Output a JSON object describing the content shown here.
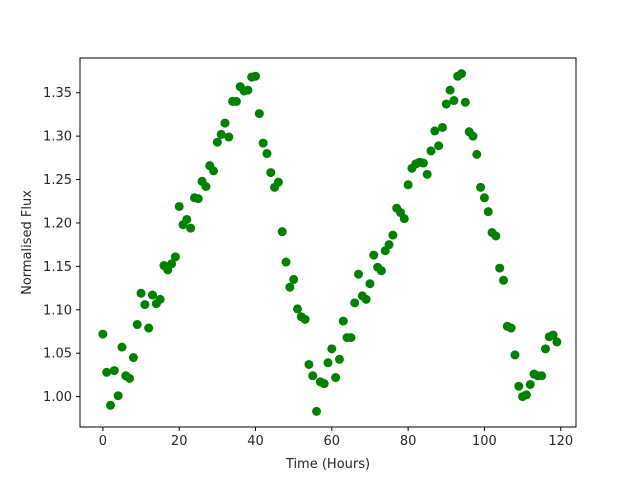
{
  "chart_data": {
    "type": "scatter",
    "xlabel": "Time (Hours)",
    "ylabel": "Normalised Flux",
    "xlim": [
      -6,
      124
    ],
    "ylim": [
      0.965,
      1.39
    ],
    "xticks": [
      0,
      20,
      40,
      60,
      80,
      100,
      120
    ],
    "yticks": [
      1.0,
      1.05,
      1.1,
      1.15,
      1.2,
      1.25,
      1.3,
      1.35
    ],
    "ytick_labels": [
      "1.00",
      "1.05",
      "1.10",
      "1.15",
      "1.20",
      "1.25",
      "1.30",
      "1.35"
    ],
    "grid": false,
    "marker_color": "#008000",
    "series": [
      {
        "x": [
          0,
          1,
          2,
          3,
          4,
          5,
          6,
          7,
          8,
          9,
          10,
          11,
          12,
          13,
          14,
          15,
          16,
          17,
          18,
          19,
          20,
          21,
          22,
          23,
          24,
          25,
          26,
          27,
          28,
          29,
          30,
          31,
          32,
          33,
          34,
          35,
          36,
          37,
          38,
          39,
          40,
          41,
          42,
          43,
          44,
          45,
          46,
          47,
          48,
          49,
          50,
          51,
          52,
          53,
          54,
          55,
          56,
          57,
          58,
          59,
          60,
          61,
          62,
          63,
          64,
          65,
          66,
          67,
          68,
          69,
          70,
          71,
          72,
          73,
          74,
          75,
          76,
          77,
          78,
          79,
          80,
          81,
          82,
          83,
          84,
          85,
          86,
          87,
          88,
          89,
          90,
          91,
          92,
          93,
          94,
          95,
          96,
          97,
          98,
          99,
          100,
          101,
          102,
          103,
          104,
          105,
          106,
          107,
          108,
          109,
          110,
          111,
          112,
          113,
          114,
          115,
          116,
          117,
          118,
          119
        ],
        "y": [
          1.072,
          1.028,
          0.99,
          1.03,
          1.001,
          1.057,
          1.024,
          1.021,
          1.045,
          1.083,
          1.119,
          1.106,
          1.079,
          1.117,
          1.107,
          1.112,
          1.151,
          1.146,
          1.153,
          1.161,
          1.219,
          1.198,
          1.204,
          1.194,
          1.229,
          1.228,
          1.248,
          1.242,
          1.266,
          1.26,
          1.293,
          1.302,
          1.315,
          1.299,
          1.34,
          1.34,
          1.357,
          1.352,
          1.353,
          1.368,
          1.369,
          1.326,
          1.292,
          1.28,
          1.258,
          1.241,
          1.247,
          1.19,
          1.155,
          1.126,
          1.135,
          1.101,
          1.092,
          1.089,
          1.037,
          1.024,
          0.983,
          1.017,
          1.015,
          1.039,
          1.055,
          1.022,
          1.043,
          1.087,
          1.068,
          1.068,
          1.108,
          1.141,
          1.116,
          1.112,
          1.13,
          1.163,
          1.149,
          1.145,
          1.168,
          1.175,
          1.186,
          1.217,
          1.212,
          1.205,
          1.244,
          1.263,
          1.268,
          1.27,
          1.269,
          1.256,
          1.283,
          1.306,
          1.289,
          1.31,
          1.337,
          1.353,
          1.341,
          1.369,
          1.372,
          1.339,
          1.305,
          1.3,
          1.279,
          1.241,
          1.229,
          1.213,
          1.189,
          1.185,
          1.148,
          1.134,
          1.081,
          1.079,
          1.048,
          1.012,
          1.0,
          1.002,
          1.014,
          1.026,
          1.024,
          1.024,
          1.055,
          1.069,
          1.071,
          1.063
        ]
      }
    ]
  }
}
